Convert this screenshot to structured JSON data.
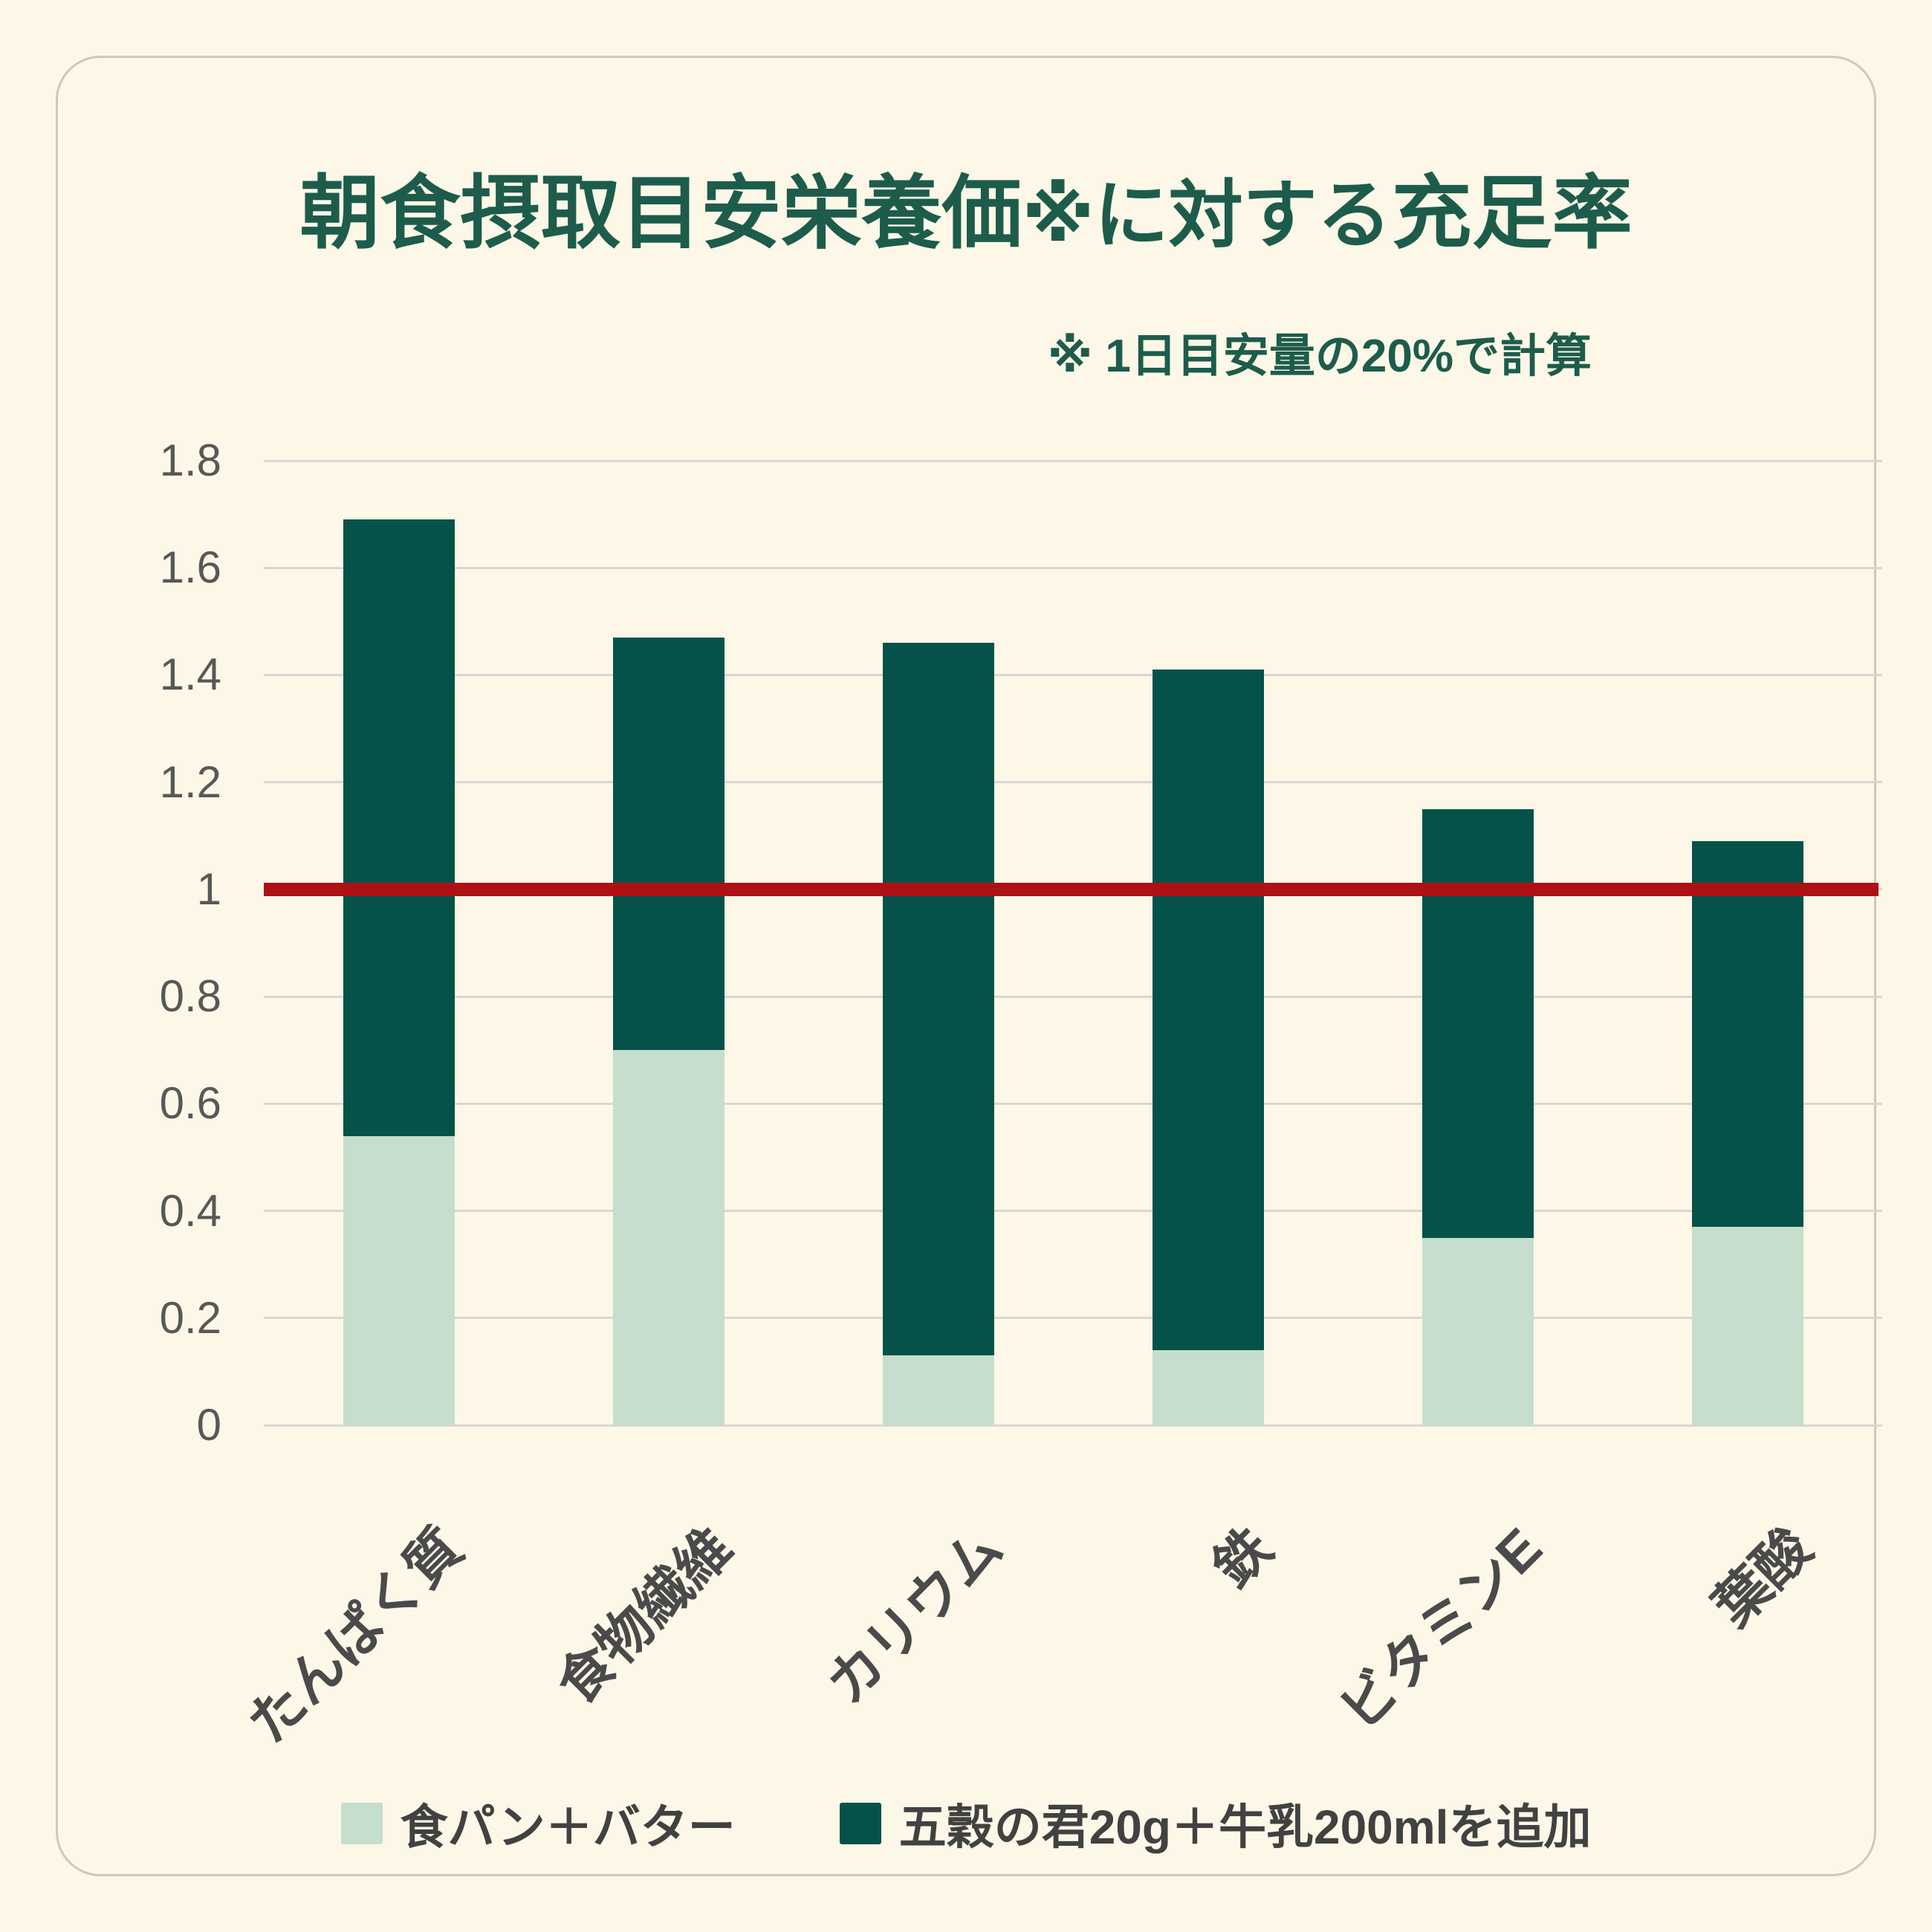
{
  "title": {
    "part1": "朝食摂取目安栄養価",
    "part2": "※に対する",
    "part3": "充足率"
  },
  "note": "※ 1日目安量の20%で計算",
  "colors": {
    "background": "#FCF7E7",
    "card_border": "#CBC8C0",
    "title_green": "#1D5C4B",
    "bar_dark_green": "#05524A",
    "bar_light_green": "#C5DECD",
    "reference_red": "#AE1113",
    "gridline": "#DAD6D4",
    "ytick_text": "#585858",
    "xtick_text": "#4A4A4A",
    "legend_text": "#414141"
  },
  "chart_data": {
    "type": "bar",
    "stacked": true,
    "title": "朝食摂取目安栄養価※に対する充足率",
    "subtitle": "※ 1日目安量の20%で計算",
    "categories": [
      "たんぱく質",
      "食物繊維",
      "カリウム",
      "鉄",
      "ビタミンE",
      "葉酸"
    ],
    "series": [
      {
        "name": "食パン＋バター",
        "color": "#C5DECD",
        "values": [
          0.54,
          0.7,
          0.13,
          0.14,
          0.35,
          0.37
        ]
      },
      {
        "name": "五穀の君20g＋牛乳200mlを追加",
        "color": "#05524A",
        "values": [
          1.15,
          0.77,
          1.33,
          1.27,
          0.8,
          0.72
        ]
      }
    ],
    "stack_totals": [
      1.69,
      1.47,
      1.46,
      1.41,
      1.15,
      1.09
    ],
    "ylim": [
      0,
      1.8
    ],
    "yticks": [
      0,
      0.2,
      0.4,
      0.6,
      0.8,
      1,
      1.2,
      1.4,
      1.6,
      1.8
    ],
    "ytick_labels": [
      "0",
      "0.2",
      "0.4",
      "0.6",
      "0.8",
      "1",
      "1.2",
      "1.4",
      "1.6",
      "1.8"
    ],
    "reference_line": {
      "value": 1,
      "color": "#AE1113"
    },
    "grid": true,
    "legend_position": "bottom",
    "xlabel": "",
    "ylabel": ""
  }
}
